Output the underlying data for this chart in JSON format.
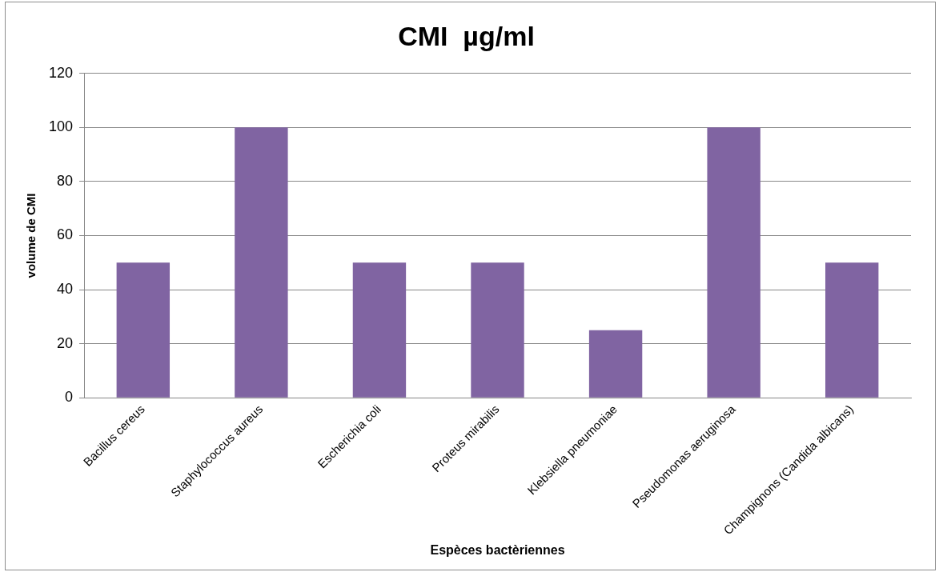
{
  "chart_data": {
    "type": "bar",
    "title": "CMI  µg/ml",
    "xlabel": "Espèces bactèriennes",
    "ylabel": "volume de CMI",
    "categories": [
      "Bacillus cereus",
      "Staphylococcus aureus",
      "Escherichia coli",
      "Proteus mirabilis",
      "Klebsiella pneumoniae",
      "Pseudomonas aeruginosa",
      "Champignons (Candida albicans)"
    ],
    "values": [
      50,
      100,
      50,
      50,
      25,
      100,
      50
    ],
    "color": "#8064a2",
    "ylim": [
      0,
      120
    ],
    "yticks": [
      0,
      20,
      40,
      60,
      80,
      100,
      120
    ],
    "grid": "y",
    "legend": false
  }
}
